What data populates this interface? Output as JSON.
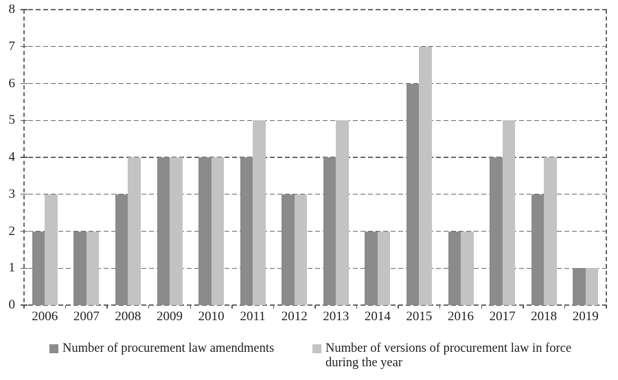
{
  "figure": {
    "background": "#ffffff",
    "text_color": "#1f1f1f",
    "grid_color": "#666666"
  },
  "chart_data": {
    "type": "bar",
    "title": "",
    "xlabel": "",
    "ylabel": "",
    "categories": [
      "2006",
      "2007",
      "2008",
      "2009",
      "2010",
      "2011",
      "2012",
      "2013",
      "2014",
      "2015",
      "2016",
      "2017",
      "2018",
      "2019"
    ],
    "series": [
      {
        "name": "Number of procurement law amendments",
        "color": "#8b8b8b",
        "values": [
          2,
          2,
          3,
          4,
          4,
          4,
          3,
          4,
          2,
          6,
          2,
          4,
          3,
          1
        ]
      },
      {
        "name": "Number of versions of procurement law in force during the year",
        "color": "#c3c3c3",
        "values": [
          3,
          2,
          4,
          4,
          4,
          5,
          3,
          5,
          2,
          7,
          2,
          5,
          4,
          1
        ]
      }
    ],
    "ylim": [
      0,
      8
    ],
    "ytick_step": 1,
    "y_tick_labels": [
      "0",
      "1",
      "2",
      "3",
      "4",
      "5",
      "6",
      "7",
      "8"
    ],
    "grid": "horizontal-dashed",
    "plot_border": "dashed-left-right",
    "legend_position": "bottom"
  },
  "legend": {
    "items": [
      {
        "lines": [
          "Number of procurement law amendments"
        ],
        "color": "#8b8b8b"
      },
      {
        "lines": [
          "Number of versions of procurement law in force",
          "during the year"
        ],
        "color": "#c3c3c3"
      }
    ]
  }
}
